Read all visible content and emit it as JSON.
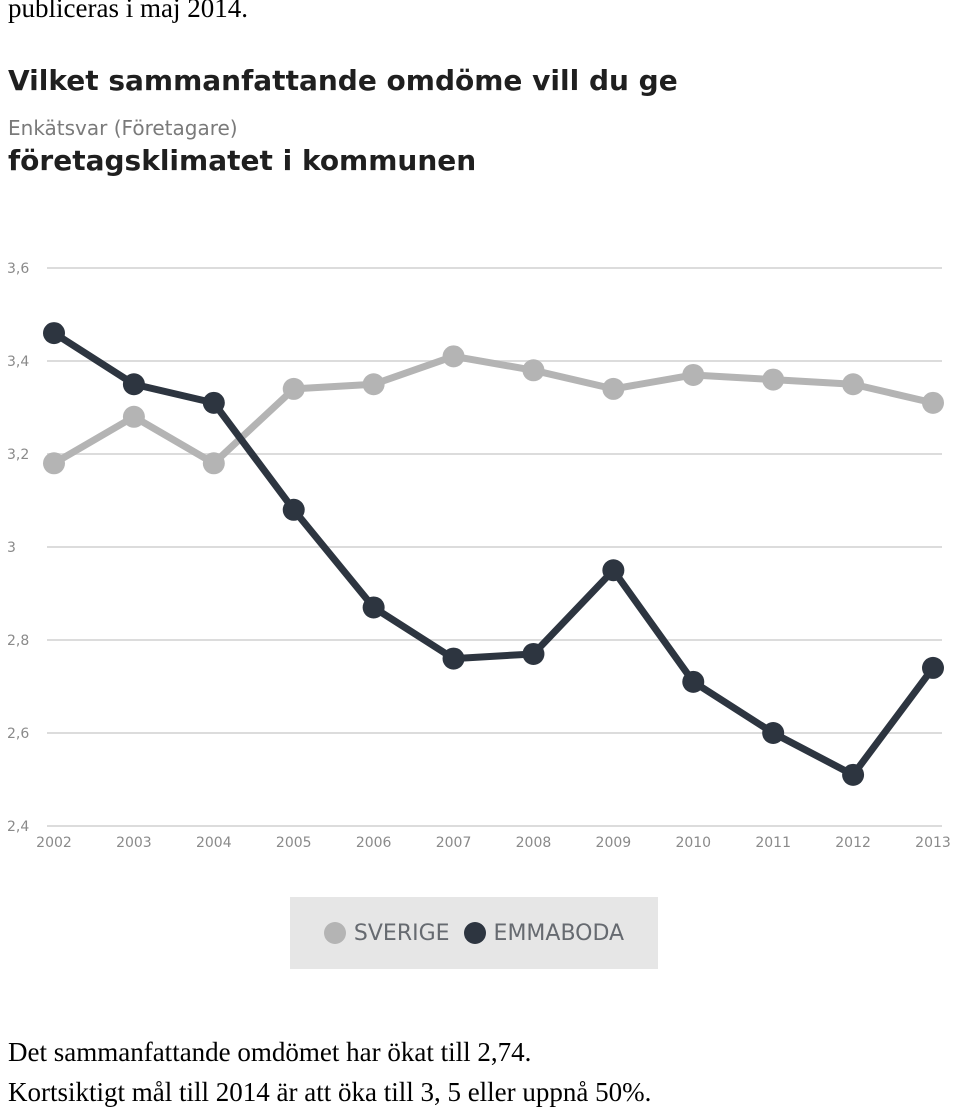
{
  "document": {
    "top_text": "publiceras i maj 2014.",
    "caption_1": "Det sammanfattande omdömet har ökat till 2,74.",
    "caption_2": "Kortsiktigt mål till 2014 är att öka till 3, 5 eller uppnå 50%."
  },
  "chart_data": {
    "type": "line",
    "title": "Vilket sammanfattande omdöme vill du ge",
    "subtitle": "Enkätsvar (Företagare)",
    "title_line2": "företagsklimatet i kommunen",
    "xlabel": "",
    "ylabel": "",
    "categories": [
      "2002",
      "2003",
      "2004",
      "2005",
      "2006",
      "2007",
      "2008",
      "2009",
      "2010",
      "2011",
      "2012",
      "2013"
    ],
    "y_ticks": [
      2.4,
      2.6,
      2.8,
      3,
      3.2,
      3.4,
      3.6
    ],
    "y_tick_labels": [
      "2,4",
      "2,6",
      "2,8",
      "3",
      "3,2",
      "3,4",
      "3,6"
    ],
    "ylim": [
      2.4,
      3.6
    ],
    "grid": true,
    "legend_position": "bottom",
    "series": [
      {
        "name": "SVERIGE",
        "color": "#b4b4b4",
        "values": [
          3.18,
          3.28,
          3.18,
          3.34,
          3.35,
          3.41,
          3.38,
          3.34,
          3.37,
          3.36,
          3.35,
          3.31
        ]
      },
      {
        "name": "EMMABODA",
        "color": "#2d3540",
        "values": [
          3.46,
          3.35,
          3.31,
          3.08,
          2.87,
          2.76,
          2.77,
          2.95,
          2.71,
          2.6,
          2.51,
          2.74
        ]
      }
    ]
  }
}
